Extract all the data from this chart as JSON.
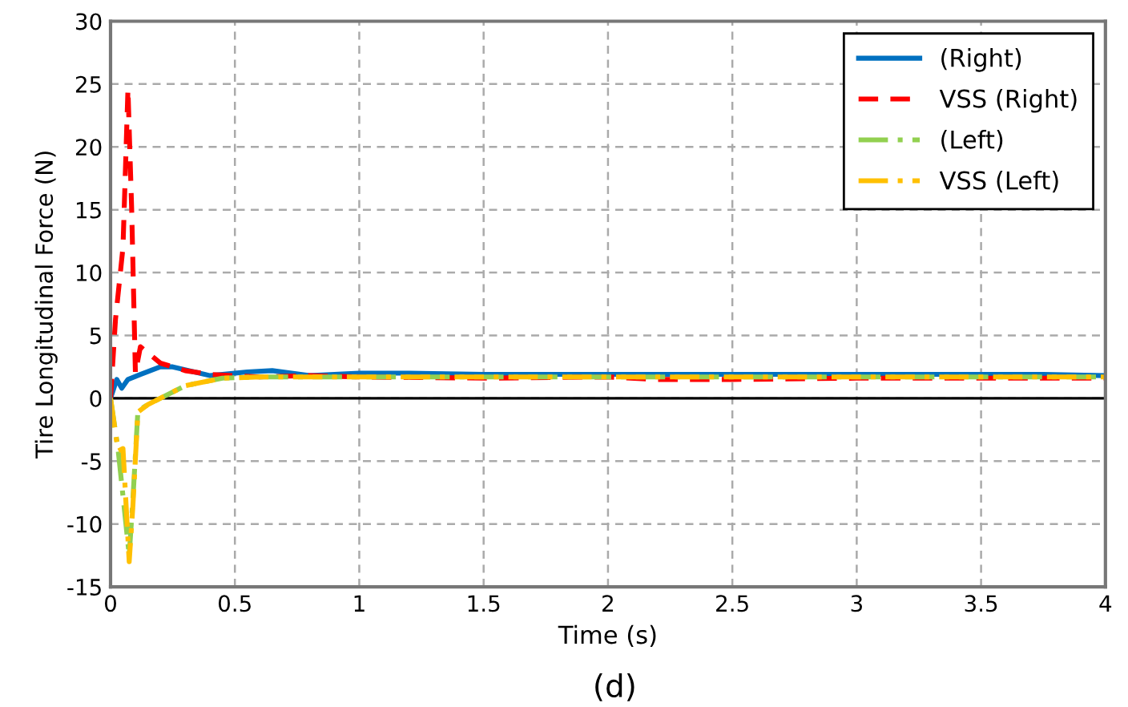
{
  "chart_data": {
    "type": "line",
    "xlabel": "Time (s)",
    "ylabel": "Tire Longitudinal Force (N)",
    "xlim": [
      0,
      4
    ],
    "xticks": [
      0,
      0.5,
      1,
      1.5,
      2,
      2.5,
      3,
      3.5,
      4
    ],
    "ylim": [
      -15,
      30
    ],
    "yticks": [
      -15,
      -10,
      -5,
      0,
      5,
      10,
      15,
      20,
      25,
      30
    ],
    "grid": true,
    "legend": "top right",
    "ref_lines": [
      {
        "axis": "y",
        "value": 0,
        "color": "#000000",
        "line_style": "solid"
      }
    ],
    "annotations": [
      "(d)"
    ],
    "series": [
      {
        "name": "(Right)",
        "color": "#0070c0",
        "line_style": "solid",
        "x": [
          0,
          0.025,
          0.045,
          0.07,
          0.12,
          0.2,
          0.25,
          0.4,
          0.55,
          0.65,
          0.8,
          1.0,
          1.2,
          1.5,
          2.0,
          2.5,
          3.0,
          3.5,
          3.75,
          4.0
        ],
        "values": [
          0,
          1.5,
          0.8,
          1.5,
          1.9,
          2.5,
          2.5,
          1.8,
          2.1,
          2.2,
          1.8,
          2.0,
          2.0,
          1.9,
          1.9,
          1.9,
          1.9,
          1.9,
          1.9,
          1.8
        ]
      },
      {
        "name": "VSS (Right)",
        "color": "#ff0000",
        "line_style": "dashed",
        "x": [
          0,
          0.02,
          0.05,
          0.07,
          0.085,
          0.1,
          0.12,
          0.2,
          0.3,
          0.4,
          0.6,
          0.8,
          1.0,
          1.5,
          2.0,
          2.2,
          2.5,
          3.0,
          3.5,
          4.0
        ],
        "values": [
          0,
          6.3,
          12,
          24.6,
          15,
          2,
          4.1,
          2.8,
          2.2,
          1.9,
          1.7,
          1.8,
          1.7,
          1.6,
          1.7,
          1.5,
          1.5,
          1.6,
          1.6,
          1.6
        ]
      },
      {
        "name": "(Left)",
        "color": "#92d050",
        "line_style": "dashdot",
        "x": [
          0,
          0.03,
          0.075,
          0.09,
          0.11,
          0.15,
          0.2,
          0.3,
          0.45,
          0.6,
          1.0,
          2.0,
          3.0,
          4.0
        ],
        "values": [
          0,
          -4,
          -12.5,
          -8,
          -1,
          -0.5,
          0,
          1,
          1.6,
          1.7,
          1.7,
          1.7,
          1.7,
          1.7
        ]
      },
      {
        "name": "VSS (Left)",
        "color": "#ffc000",
        "line_style": "dashdot",
        "x": [
          0,
          0.03,
          0.05,
          0.075,
          0.09,
          0.11,
          0.15,
          0.2,
          0.3,
          0.45,
          0.6,
          1.0,
          2.0,
          3.0,
          4.0
        ],
        "values": [
          0,
          -4.2,
          -4,
          -13,
          -8.5,
          -1.1,
          -0.5,
          0,
          1,
          1.6,
          1.7,
          1.7,
          1.7,
          1.7,
          1.7
        ]
      }
    ]
  }
}
